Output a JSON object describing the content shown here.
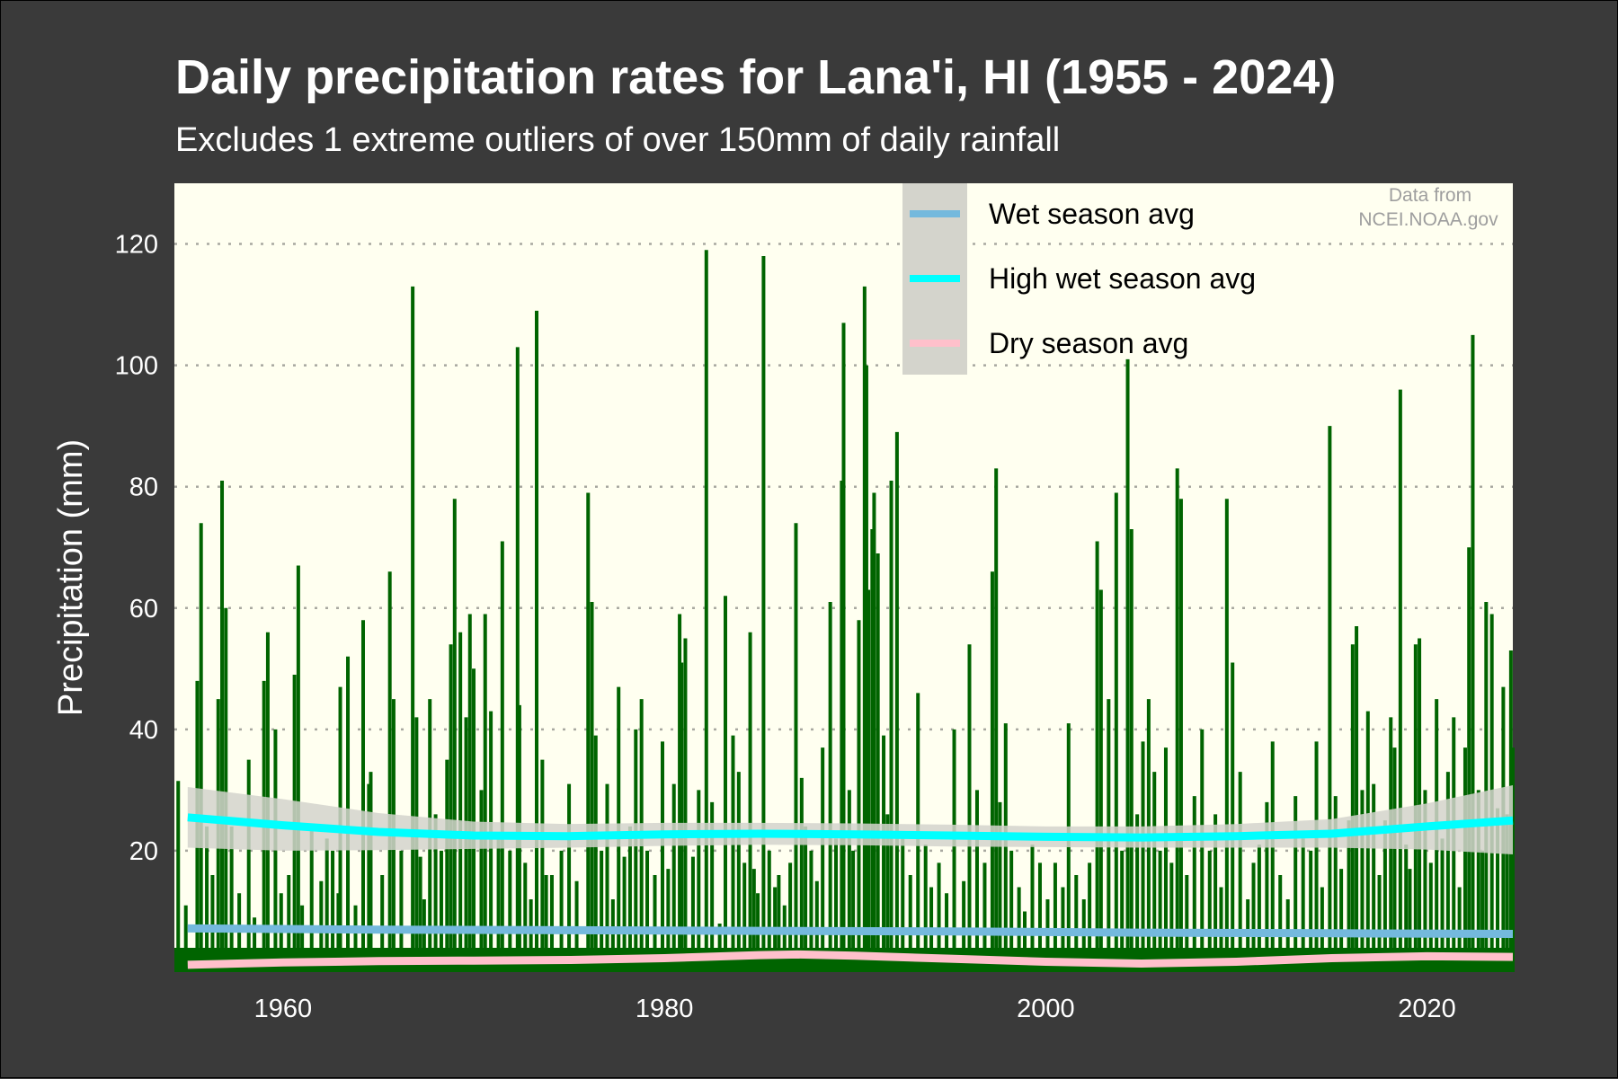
{
  "chart_data": {
    "type": "bar",
    "title": "Daily precipitation rates for Lana'i, HI (1955 - 2024)",
    "subtitle": "Excludes 1 extreme outliers of over 150mm of daily rainfall",
    "xlabel": "",
    "ylabel": "Precipitation (mm)",
    "xlim": [
      1954.3,
      2024.5
    ],
    "ylim": [
      0,
      130
    ],
    "x_ticks": [
      1960,
      1980,
      2000,
      2020
    ],
    "y_ticks": [
      20,
      40,
      60,
      80,
      100,
      120
    ],
    "grid": "horizontal dotted",
    "legend_position": "top-right",
    "annotation": [
      "Data from",
      "NCEI.NOAA.gov"
    ],
    "colors": {
      "background": "#3a3a3a",
      "panel": "#fffff0",
      "bars": "#006400",
      "wet_season": "#74b9dd",
      "high_wet_season": "#00ffff",
      "dry_season": "#ffc0cb",
      "confidence_band": "#d4d4cc",
      "text": "#ffffff"
    },
    "series": [
      {
        "name": "Daily precipitation",
        "points": [
          [
            1954.5,
            31.5
          ],
          [
            1954.9,
            11
          ],
          [
            1955.5,
            48
          ],
          [
            1955.7,
            74
          ],
          [
            1956.0,
            24
          ],
          [
            1956.3,
            16
          ],
          [
            1956.6,
            45
          ],
          [
            1956.8,
            81
          ],
          [
            1957.0,
            60
          ],
          [
            1957.3,
            24
          ],
          [
            1957.7,
            13
          ],
          [
            1958.2,
            35
          ],
          [
            1958.5,
            9
          ],
          [
            1959.0,
            48
          ],
          [
            1959.2,
            56
          ],
          [
            1959.6,
            40
          ],
          [
            1959.9,
            13
          ],
          [
            1960.3,
            16
          ],
          [
            1960.6,
            49
          ],
          [
            1960.8,
            67
          ],
          [
            1961.0,
            11
          ],
          [
            1961.5,
            24
          ],
          [
            1962.0,
            15
          ],
          [
            1962.3,
            22
          ],
          [
            1962.6,
            20
          ],
          [
            1962.9,
            13
          ],
          [
            1963.0,
            47
          ],
          [
            1963.4,
            52
          ],
          [
            1963.8,
            11
          ],
          [
            1964.2,
            58
          ],
          [
            1964.5,
            31
          ],
          [
            1964.6,
            33
          ],
          [
            1965.2,
            16
          ],
          [
            1965.6,
            66
          ],
          [
            1965.8,
            45
          ],
          [
            1966.2,
            20
          ],
          [
            1966.8,
            113
          ],
          [
            1967.0,
            42
          ],
          [
            1967.2,
            19
          ],
          [
            1967.4,
            12
          ],
          [
            1967.7,
            45
          ],
          [
            1968.0,
            26
          ],
          [
            1968.3,
            20
          ],
          [
            1968.6,
            35
          ],
          [
            1968.8,
            54
          ],
          [
            1969.0,
            78
          ],
          [
            1969.3,
            56
          ],
          [
            1969.6,
            42
          ],
          [
            1969.8,
            59
          ],
          [
            1970.0,
            50
          ],
          [
            1970.4,
            30
          ],
          [
            1970.6,
            59
          ],
          [
            1970.9,
            43
          ],
          [
            1971.3,
            23
          ],
          [
            1971.5,
            71
          ],
          [
            1971.9,
            20
          ],
          [
            1972.3,
            103
          ],
          [
            1972.4,
            44
          ],
          [
            1972.7,
            18
          ],
          [
            1973.0,
            12
          ],
          [
            1973.3,
            109
          ],
          [
            1973.6,
            35
          ],
          [
            1973.8,
            16
          ],
          [
            1974.1,
            16
          ],
          [
            1974.6,
            20
          ],
          [
            1975.0,
            31
          ],
          [
            1975.4,
            15
          ],
          [
            1976.0,
            79
          ],
          [
            1976.2,
            61
          ],
          [
            1976.4,
            39
          ],
          [
            1976.7,
            20
          ],
          [
            1977.0,
            31
          ],
          [
            1977.3,
            12
          ],
          [
            1977.6,
            47
          ],
          [
            1977.9,
            19
          ],
          [
            1978.2,
            24
          ],
          [
            1978.5,
            40
          ],
          [
            1978.8,
            45
          ],
          [
            1979.1,
            20
          ],
          [
            1979.5,
            16
          ],
          [
            1979.9,
            38
          ],
          [
            1980.2,
            17
          ],
          [
            1980.5,
            31
          ],
          [
            1980.8,
            59
          ],
          [
            1980.9,
            51
          ],
          [
            1981.1,
            55
          ],
          [
            1981.5,
            19
          ],
          [
            1981.8,
            30
          ],
          [
            1982.2,
            119
          ],
          [
            1982.5,
            28
          ],
          [
            1982.9,
            8
          ],
          [
            1983.2,
            62
          ],
          [
            1983.6,
            39
          ],
          [
            1983.9,
            33
          ],
          [
            1984.2,
            18
          ],
          [
            1984.5,
            56
          ],
          [
            1984.7,
            17
          ],
          [
            1984.9,
            13
          ],
          [
            1985.2,
            118
          ],
          [
            1985.5,
            20
          ],
          [
            1985.8,
            14
          ],
          [
            1986.0,
            16
          ],
          [
            1986.3,
            11
          ],
          [
            1986.6,
            18
          ],
          [
            1986.9,
            74
          ],
          [
            1987.2,
            32
          ],
          [
            1987.4,
            24
          ],
          [
            1987.7,
            20
          ],
          [
            1988.0,
            15
          ],
          [
            1988.3,
            37
          ],
          [
            1988.7,
            61
          ],
          [
            1989.0,
            22
          ],
          [
            1989.3,
            81
          ],
          [
            1989.4,
            107
          ],
          [
            1989.7,
            30
          ],
          [
            1989.9,
            20
          ],
          [
            1990.2,
            58
          ],
          [
            1990.5,
            113
          ],
          [
            1990.6,
            100
          ],
          [
            1990.7,
            63
          ],
          [
            1990.9,
            73
          ],
          [
            1991.0,
            79
          ],
          [
            1991.2,
            69
          ],
          [
            1991.5,
            39
          ],
          [
            1991.7,
            26
          ],
          [
            1991.9,
            81
          ],
          [
            1992.2,
            89
          ],
          [
            1992.5,
            22
          ],
          [
            1992.9,
            16
          ],
          [
            1993.3,
            46
          ],
          [
            1993.7,
            21
          ],
          [
            1994.0,
            14
          ],
          [
            1994.4,
            18
          ],
          [
            1994.8,
            13
          ],
          [
            1995.2,
            40
          ],
          [
            1995.7,
            15
          ],
          [
            1996.0,
            54
          ],
          [
            1996.4,
            30
          ],
          [
            1996.8,
            18
          ],
          [
            1997.2,
            66
          ],
          [
            1997.4,
            83
          ],
          [
            1997.6,
            28
          ],
          [
            1997.9,
            41
          ],
          [
            1998.2,
            20
          ],
          [
            1998.6,
            14
          ],
          [
            1998.9,
            10
          ],
          [
            1999.3,
            21
          ],
          [
            1999.7,
            18
          ],
          [
            2000.1,
            12
          ],
          [
            2000.5,
            18
          ],
          [
            2000.9,
            14
          ],
          [
            2001.2,
            41
          ],
          [
            2001.6,
            16
          ],
          [
            2002.0,
            12
          ],
          [
            2002.3,
            18
          ],
          [
            2002.7,
            71
          ],
          [
            2002.9,
            63
          ],
          [
            2003.3,
            45
          ],
          [
            2003.7,
            79
          ],
          [
            2004.0,
            20
          ],
          [
            2004.3,
            101
          ],
          [
            2004.5,
            73
          ],
          [
            2004.8,
            26
          ],
          [
            2005.1,
            38
          ],
          [
            2005.4,
            45
          ],
          [
            2005.7,
            33
          ],
          [
            2006.0,
            20
          ],
          [
            2006.3,
            37
          ],
          [
            2006.6,
            18
          ],
          [
            2006.9,
            83
          ],
          [
            2007.1,
            78
          ],
          [
            2007.4,
            16
          ],
          [
            2007.8,
            29
          ],
          [
            2008.2,
            40
          ],
          [
            2008.6,
            20
          ],
          [
            2008.9,
            26
          ],
          [
            2009.2,
            14
          ],
          [
            2009.5,
            78
          ],
          [
            2009.8,
            51
          ],
          [
            2010.2,
            33
          ],
          [
            2010.6,
            12
          ],
          [
            2010.9,
            18
          ],
          [
            2011.2,
            21
          ],
          [
            2011.6,
            28
          ],
          [
            2011.9,
            38
          ],
          [
            2012.3,
            16
          ],
          [
            2012.7,
            12
          ],
          [
            2013.1,
            29
          ],
          [
            2013.5,
            22
          ],
          [
            2013.9,
            20
          ],
          [
            2014.2,
            38
          ],
          [
            2014.5,
            14
          ],
          [
            2014.9,
            90
          ],
          [
            2015.2,
            29
          ],
          [
            2015.5,
            17
          ],
          [
            2015.9,
            25
          ],
          [
            2016.1,
            54
          ],
          [
            2016.3,
            57
          ],
          [
            2016.6,
            30
          ],
          [
            2016.9,
            43
          ],
          [
            2017.2,
            31
          ],
          [
            2017.5,
            16
          ],
          [
            2017.8,
            25
          ],
          [
            2018.1,
            42
          ],
          [
            2018.3,
            37
          ],
          [
            2018.6,
            96
          ],
          [
            2018.9,
            21
          ],
          [
            2019.1,
            17
          ],
          [
            2019.4,
            54
          ],
          [
            2019.6,
            55
          ],
          [
            2019.9,
            30
          ],
          [
            2020.2,
            18
          ],
          [
            2020.5,
            45
          ],
          [
            2020.8,
            22
          ],
          [
            2021.1,
            33
          ],
          [
            2021.4,
            42
          ],
          [
            2021.7,
            14
          ],
          [
            2022.0,
            37
          ],
          [
            2022.2,
            70
          ],
          [
            2022.4,
            105
          ],
          [
            2022.7,
            30
          ],
          [
            2022.9,
            20
          ],
          [
            2023.1,
            61
          ],
          [
            2023.4,
            59
          ],
          [
            2023.7,
            27
          ],
          [
            2024.0,
            47
          ],
          [
            2024.2,
            26
          ],
          [
            2024.4,
            53
          ],
          [
            2024.5,
            37
          ]
        ]
      },
      {
        "name": "Wet season avg",
        "points": [
          [
            1955,
            7.2
          ],
          [
            1965,
            7.0
          ],
          [
            1975,
            6.9
          ],
          [
            1985,
            6.8
          ],
          [
            1995,
            6.7
          ],
          [
            2005,
            6.5
          ],
          [
            2015,
            6.4
          ],
          [
            2024.5,
            6.3
          ]
        ]
      },
      {
        "name": "High wet season avg",
        "points": [
          [
            1955,
            25.5
          ],
          [
            1960,
            24.2
          ],
          [
            1965,
            23.1
          ],
          [
            1970,
            22.5
          ],
          [
            1975,
            22.4
          ],
          [
            1980,
            22.7
          ],
          [
            1985,
            22.8
          ],
          [
            1990,
            22.7
          ],
          [
            1995,
            22.5
          ],
          [
            2000,
            22.3
          ],
          [
            2005,
            22.2
          ],
          [
            2010,
            22.4
          ],
          [
            2015,
            22.8
          ],
          [
            2020,
            24.0
          ],
          [
            2024.5,
            25.0
          ]
        ],
        "band_upper": [
          [
            1955,
            30.5
          ],
          [
            1960,
            28.5
          ],
          [
            1965,
            26.2
          ],
          [
            1970,
            24.8
          ],
          [
            1975,
            24.4
          ],
          [
            1980,
            24.6
          ],
          [
            1985,
            24.6
          ],
          [
            1990,
            24.5
          ],
          [
            1995,
            24.3
          ],
          [
            2000,
            24.0
          ],
          [
            2005,
            24.0
          ],
          [
            2010,
            24.4
          ],
          [
            2015,
            25.2
          ],
          [
            2020,
            27.8
          ],
          [
            2024.5,
            30.8
          ]
        ],
        "band_lower": [
          [
            1955,
            20.5
          ],
          [
            1960,
            20.0
          ],
          [
            1965,
            20.1
          ],
          [
            1970,
            20.3
          ],
          [
            1975,
            20.5
          ],
          [
            1980,
            20.8
          ],
          [
            1985,
            21.0
          ],
          [
            1990,
            20.9
          ],
          [
            1995,
            20.7
          ],
          [
            2000,
            20.6
          ],
          [
            2005,
            20.5
          ],
          [
            2010,
            20.5
          ],
          [
            2015,
            20.5
          ],
          [
            2020,
            20.2
          ],
          [
            2024.5,
            19.4
          ]
        ]
      },
      {
        "name": "Dry season avg",
        "points": [
          [
            1955,
            1.2
          ],
          [
            1960,
            1.6
          ],
          [
            1965,
            1.8
          ],
          [
            1970,
            1.9
          ],
          [
            1975,
            2.0
          ],
          [
            1980,
            2.3
          ],
          [
            1985,
            2.8
          ],
          [
            1987,
            2.9
          ],
          [
            1990,
            2.7
          ],
          [
            1995,
            2.2
          ],
          [
            2000,
            1.7
          ],
          [
            2005,
            1.4
          ],
          [
            2010,
            1.7
          ],
          [
            2015,
            2.3
          ],
          [
            2020,
            2.6
          ],
          [
            2024.5,
            2.5
          ]
        ]
      }
    ]
  }
}
